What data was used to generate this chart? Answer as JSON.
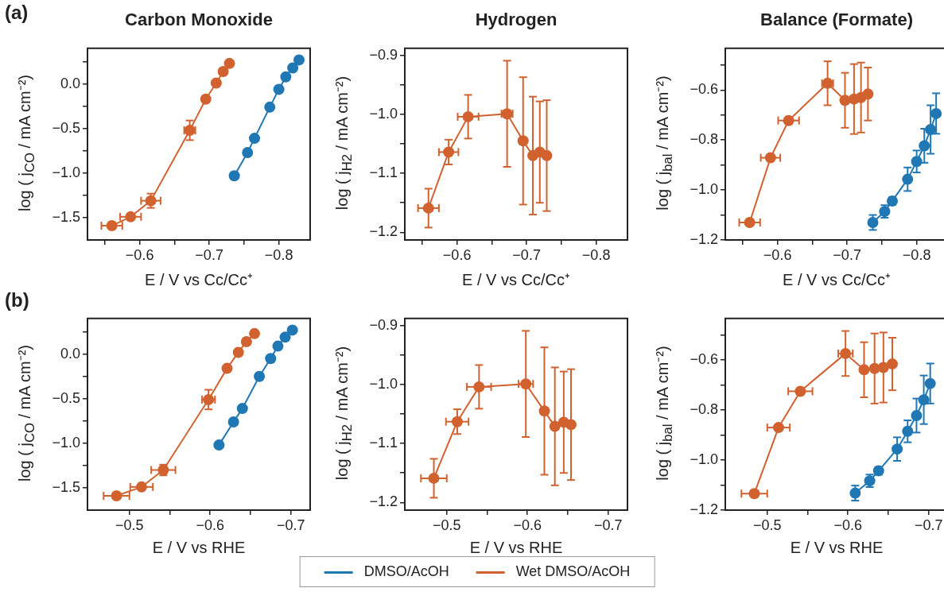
{
  "chart_data": [
    {
      "type": "line",
      "title": "Carbon Monoxide",
      "annotations": [
        "(a)"
      ],
      "legend": "bottom",
      "xlabel": "E / V vs Cc/Cc⁺",
      "ylabel": "log ( j$_{CO}$ / mA cm⁻²)",
      "marker": "circle",
      "xlim": [
        -0.525,
        -0.845
      ],
      "xticks": [
        {
          "value": -0.55,
          "label": null
        },
        {
          "value": -0.6,
          "label": "−0.6"
        },
        {
          "value": -0.65,
          "label": null
        },
        {
          "value": -0.7,
          "label": "−0.7"
        },
        {
          "value": -0.75,
          "label": null
        },
        {
          "value": -0.8,
          "label": "−0.8"
        }
      ],
      "ylim": [
        -1.75,
        0.4
      ],
      "yticks": [
        {
          "value": -1.5,
          "label": "−1.5"
        },
        {
          "value": -1.25,
          "label": null
        },
        {
          "value": -1.0,
          "label": "−1.0"
        },
        {
          "value": -0.75,
          "label": null
        },
        {
          "value": -0.5,
          "label": "−0.5"
        },
        {
          "value": -0.25,
          "label": null
        },
        {
          "value": 0,
          "label": "0.0"
        },
        {
          "value": 0.25,
          "label": null
        }
      ],
      "series": [
        {
          "name": "DMSO/AcOH",
          "color": "#1f77b4",
          "x": [
            -0.736,
            -0.755,
            -0.765,
            -0.787,
            -0.8,
            -0.81,
            -0.82,
            -0.829
          ],
          "values": [
            -1.03,
            -0.77,
            -0.61,
            -0.26,
            -0.06,
            0.08,
            0.18,
            0.27
          ]
        },
        {
          "name": "Wet DMSO/AcOH",
          "color": "#d1622f",
          "x": [
            -0.56,
            -0.587,
            -0.616,
            -0.672,
            -0.695,
            -0.71,
            -0.72,
            -0.729
          ],
          "values": [
            -1.59,
            -1.49,
            -1.31,
            -0.52,
            -0.17,
            0.01,
            0.14,
            0.23
          ],
          "errors": [
            null,
            null,
            0.08,
            0.11,
            null,
            null,
            null,
            null
          ],
          "xerrors": [
            0.015,
            0.015,
            0.014,
            0.008,
            null,
            null,
            null,
            null
          ]
        }
      ]
    },
    {
      "type": "line",
      "title": "Hydrogen",
      "xlabel": "E / V vs Cc/Cc⁺",
      "ylabel": "log ( j$_{H2}$ / mA cm⁻²)",
      "marker": "circle",
      "xlim": [
        -0.525,
        -0.845
      ],
      "xticks": [
        {
          "value": -0.55,
          "label": null
        },
        {
          "value": -0.6,
          "label": "−0.6"
        },
        {
          "value": -0.65,
          "label": null
        },
        {
          "value": -0.7,
          "label": "−0.7"
        },
        {
          "value": -0.75,
          "label": null
        },
        {
          "value": -0.8,
          "label": "−0.8"
        }
      ],
      "ylim": [
        -1.213,
        -0.888
      ],
      "yticks": [
        {
          "value": -1.2,
          "label": "−1.2"
        },
        {
          "value": -1.15,
          "label": null
        },
        {
          "value": -1.1,
          "label": "−1.1"
        },
        {
          "value": -1.05,
          "label": null
        },
        {
          "value": -1.0,
          "label": "−1.0"
        },
        {
          "value": -0.95,
          "label": null
        },
        {
          "value": -0.9,
          "label": "−0.9"
        }
      ],
      "series": [
        {
          "color": "#d1622f",
          "x": [
            -0.559,
            -0.588,
            -0.616,
            -0.672,
            -0.695,
            -0.709,
            -0.719,
            -0.729
          ],
          "values": [
            -1.159,
            -1.064,
            -1.004,
            -0.999,
            -1.045,
            -1.07,
            -1.064,
            -1.07
          ],
          "errors": [
            0.033,
            0.021,
            0.037,
            0.09,
            0.108,
            0.1,
            0.086,
            0.094
          ],
          "xerrors": [
            0.015,
            0.014,
            0.015,
            0.008,
            null,
            null,
            null,
            null
          ]
        }
      ]
    },
    {
      "type": "line",
      "title": "Balance (Formate)",
      "xlabel": "E / V vs Cc/Cc⁺",
      "ylabel": "log ( j$_{bal}$ / mA cm⁻²)",
      "marker": "circle",
      "xlim": [
        -0.525,
        -0.845
      ],
      "xticks": [
        {
          "value": -0.55,
          "label": null
        },
        {
          "value": -0.6,
          "label": "−0.6"
        },
        {
          "value": -0.65,
          "label": null
        },
        {
          "value": -0.7,
          "label": "−0.7"
        },
        {
          "value": -0.75,
          "label": null
        },
        {
          "value": -0.8,
          "label": "−0.8"
        }
      ],
      "ylim": [
        -1.2,
        -0.433
      ],
      "yticks": [
        {
          "value": -1.2,
          "label": "−1.2"
        },
        {
          "value": -1.1,
          "label": null
        },
        {
          "value": -1.0,
          "label": "−1.0"
        },
        {
          "value": -0.9,
          "label": null
        },
        {
          "value": -0.8,
          "label": "−0.8"
        },
        {
          "value": -0.7,
          "label": null
        },
        {
          "value": -0.6,
          "label": "−0.6"
        },
        {
          "value": -0.5,
          "label": null
        }
      ],
      "series": [
        {
          "color": "#1f77b4",
          "x": [
            -0.737,
            -0.754,
            -0.765,
            -0.787,
            -0.8,
            -0.811,
            -0.82,
            -0.828
          ],
          "values": [
            -1.13,
            -1.086,
            -1.044,
            -0.957,
            -0.886,
            -0.823,
            -0.758,
            -0.694
          ],
          "errors": [
            0.03,
            0.025,
            0.015,
            0.047,
            0.044,
            0.068,
            0.097,
            0.081
          ]
        },
        {
          "color": "#d1622f",
          "x": [
            -0.56,
            -0.59,
            -0.616,
            -0.672,
            -0.697,
            -0.71,
            -0.72,
            -0.73
          ],
          "values": [
            -1.13,
            -0.871,
            -0.722,
            -0.573,
            -0.641,
            -0.636,
            -0.63,
            -0.616
          ],
          "errors": [
            null,
            null,
            null,
            0.088,
            0.11,
            0.14,
            0.14,
            0.106
          ],
          "xerrors": [
            0.015,
            0.014,
            0.015,
            0.008,
            null,
            null,
            null,
            null
          ]
        }
      ]
    },
    {
      "type": "line",
      "annotations": [
        "(b)"
      ],
      "xlabel": "E / V vs RHE",
      "ylabel": "log ( j$_{CO}$ / mA cm⁻²)",
      "marker": "circle",
      "xlim": [
        -0.448,
        -0.724
      ],
      "xticks": [
        {
          "value": -0.5,
          "label": "−0.5"
        },
        {
          "value": -0.55,
          "label": null
        },
        {
          "value": -0.6,
          "label": "−0.6"
        },
        {
          "value": -0.65,
          "label": null
        },
        {
          "value": -0.7,
          "label": "−0.7"
        }
      ],
      "ylim": [
        -1.75,
        0.4
      ],
      "yticks": [
        {
          "value": -1.5,
          "label": "−1.5"
        },
        {
          "value": -1.25,
          "label": null
        },
        {
          "value": -1.0,
          "label": "−1.0"
        },
        {
          "value": -0.75,
          "label": null
        },
        {
          "value": -0.5,
          "label": "−0.5"
        },
        {
          "value": -0.25,
          "label": null
        },
        {
          "value": 0,
          "label": "0.0"
        },
        {
          "value": 0.25,
          "label": null
        }
      ],
      "series": [
        {
          "color": "#1f77b4",
          "x": [
            -0.611,
            -0.629,
            -0.64,
            -0.661,
            -0.675,
            -0.684,
            -0.693,
            -0.702
          ],
          "values": [
            -1.02,
            -0.76,
            -0.61,
            -0.25,
            -0.05,
            0.09,
            0.19,
            0.27
          ]
        },
        {
          "color": "#d1622f",
          "x": [
            -0.484,
            -0.515,
            -0.542,
            -0.598,
            -0.621,
            -0.635,
            -0.645,
            -0.655
          ],
          "values": [
            -1.59,
            -1.49,
            -1.3,
            -0.51,
            -0.16,
            0.02,
            0.14,
            0.23
          ],
          "errors": [
            null,
            null,
            0.06,
            0.11,
            null,
            null,
            null,
            null
          ],
          "xerrors": [
            0.016,
            0.014,
            0.015,
            0.008,
            null,
            null,
            null,
            null
          ]
        }
      ]
    },
    {
      "type": "line",
      "xlabel": "E / V vs RHE",
      "ylabel": "log ( j$_{H2}$ / mA cm⁻²)",
      "marker": "circle",
      "xlim": [
        -0.448,
        -0.724
      ],
      "xticks": [
        {
          "value": -0.5,
          "label": "−0.5"
        },
        {
          "value": -0.55,
          "label": null
        },
        {
          "value": -0.6,
          "label": "−0.6"
        },
        {
          "value": -0.65,
          "label": null
        },
        {
          "value": -0.7,
          "label": "−0.7"
        }
      ],
      "ylim": [
        -1.213,
        -0.888
      ],
      "yticks": [
        {
          "value": -1.2,
          "label": "−1.2"
        },
        {
          "value": -1.15,
          "label": null
        },
        {
          "value": -1.1,
          "label": "−1.1"
        },
        {
          "value": -1.05,
          "label": null
        },
        {
          "value": -1.0,
          "label": "−1.0"
        },
        {
          "value": -0.95,
          "label": null
        },
        {
          "value": -0.9,
          "label": "−0.9"
        }
      ],
      "series": [
        {
          "color": "#d1622f",
          "x": [
            -0.484,
            -0.513,
            -0.54,
            -0.598,
            -0.621,
            -0.634,
            -0.645,
            -0.654
          ],
          "values": [
            -1.159,
            -1.063,
            -1.004,
            -0.999,
            -1.045,
            -1.071,
            -1.064,
            -1.068
          ],
          "errors": [
            0.033,
            0.021,
            0.037,
            0.09,
            0.108,
            0.1,
            0.086,
            0.094
          ],
          "xerrors": [
            0.016,
            0.014,
            0.015,
            0.009,
            null,
            null,
            null,
            null
          ]
        }
      ]
    },
    {
      "type": "line",
      "xlabel": "E / V vs RHE",
      "ylabel": "log ( j$_{bal}$ / mA cm⁻²)",
      "marker": "circle",
      "xlim": [
        -0.448,
        -0.724
      ],
      "xticks": [
        {
          "value": -0.5,
          "label": "−0.5"
        },
        {
          "value": -0.55,
          "label": null
        },
        {
          "value": -0.6,
          "label": "−0.6"
        },
        {
          "value": -0.65,
          "label": null
        },
        {
          "value": -0.7,
          "label": "−0.7"
        }
      ],
      "ylim": [
        -1.2,
        -0.434
      ],
      "yticks": [
        {
          "value": -1.2,
          "label": "−1.2"
        },
        {
          "value": -1.1,
          "label": null
        },
        {
          "value": -1.0,
          "label": "−1.0"
        },
        {
          "value": -0.9,
          "label": null
        },
        {
          "value": -0.8,
          "label": "−0.8"
        },
        {
          "value": -0.7,
          "label": null
        },
        {
          "value": -0.6,
          "label": "−0.6"
        },
        {
          "value": -0.5,
          "label": null
        }
      ],
      "series": [
        {
          "color": "#1f77b4",
          "x": [
            -0.609,
            -0.627,
            -0.638,
            -0.661,
            -0.674,
            -0.685,
            -0.694,
            -0.702
          ],
          "values": [
            -1.132,
            -1.083,
            -1.043,
            -0.956,
            -0.885,
            -0.822,
            -0.759,
            -0.694
          ],
          "errors": [
            0.03,
            0.025,
            0.015,
            0.047,
            0.044,
            0.068,
            0.097,
            0.08
          ]
        },
        {
          "color": "#d1622f",
          "x": [
            -0.484,
            -0.514,
            -0.541,
            -0.597,
            -0.62,
            -0.633,
            -0.644,
            -0.655
          ],
          "values": [
            -1.134,
            -0.87,
            -0.725,
            -0.574,
            -0.639,
            -0.634,
            -0.63,
            -0.616
          ],
          "errors": [
            null,
            null,
            null,
            0.09,
            0.11,
            0.14,
            0.14,
            0.105
          ],
          "xerrors": [
            0.016,
            0.014,
            0.015,
            0.009,
            null,
            null,
            null,
            null
          ]
        }
      ]
    }
  ]
}
